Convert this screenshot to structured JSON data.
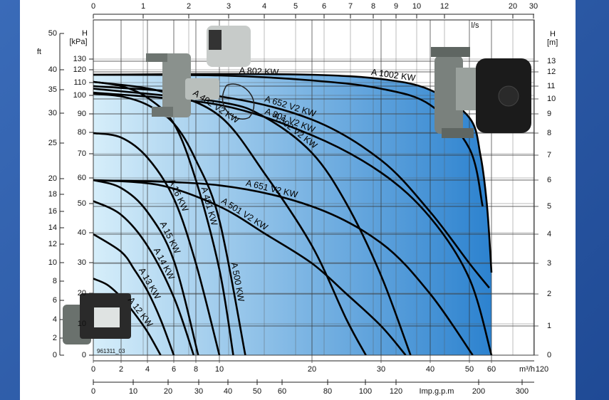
{
  "chart_data": {
    "type": "line",
    "code": "961311_03",
    "color": "#000000",
    "area_colors": [
      "#d6eefa",
      "#2c82cf"
    ],
    "grid": true,
    "x_label": "m³/h",
    "xlim": [
      0,
      120
    ],
    "xticks": [
      0,
      2,
      4,
      6,
      8,
      10,
      20,
      30,
      40,
      50,
      60,
      120
    ],
    "x2_label": "l/s",
    "x2ticks": [
      0,
      1,
      2,
      3,
      4,
      5,
      6,
      7,
      8,
      9,
      10,
      12,
      20,
      30
    ],
    "x3_label": "Imp.g.p.m",
    "x3ticks": [
      0,
      10,
      20,
      30,
      40,
      50,
      60,
      80,
      100,
      120,
      200,
      300
    ],
    "y_label": "H",
    "y_unit": "[m]",
    "ylim": [
      0,
      13
    ],
    "yticks": [
      0,
      1,
      2,
      3,
      4,
      5,
      6,
      7,
      8,
      9,
      10,
      11,
      12,
      13
    ],
    "y2_label": "H",
    "y2_unit": "[kPa]",
    "y2ticks": [
      0,
      10,
      20,
      30,
      40,
      50,
      60,
      70,
      80,
      90,
      100,
      110,
      120,
      130
    ],
    "y3_label": "ft",
    "y3ticks": [
      0,
      2,
      4,
      6,
      8,
      10,
      12,
      14,
      16,
      18,
      20,
      25,
      30,
      35,
      40,
      50
    ],
    "series": [
      {
        "name": "A 12 KW",
        "x": [
          0,
          1,
          2,
          3,
          4,
          5
        ],
        "values": [
          2.5,
          2.3,
          1.9,
          1.4,
          0.8,
          0
        ]
      },
      {
        "name": "A 13 KW",
        "x": [
          0,
          2,
          3,
          4,
          5,
          6
        ],
        "values": [
          4,
          3.4,
          2.8,
          2.1,
          1.2,
          0
        ]
      },
      {
        "name": "A 14 KW",
        "x": [
          0,
          2,
          4,
          6,
          7.8
        ],
        "values": [
          5.2,
          4.7,
          3.6,
          1.9,
          0
        ]
      },
      {
        "name": "A 15 KW",
        "x": [
          0,
          2,
          4,
          6,
          8.2
        ],
        "values": [
          6,
          5.7,
          4.8,
          3.1,
          0
        ]
      },
      {
        "name": "A 16 KW",
        "x": [
          0,
          2,
          4,
          6,
          8,
          10
        ],
        "values": [
          8,
          7.8,
          6.9,
          5.3,
          3,
          0
        ]
      },
      {
        "name": "A 401 KW",
        "x": [
          0,
          2,
          4,
          6,
          8,
          10,
          11.5
        ],
        "values": [
          11.3,
          11,
          10.1,
          8.5,
          6,
          2.8,
          0
        ]
      },
      {
        "name": "A 500 KW",
        "x": [
          0,
          2,
          4,
          6,
          8,
          10,
          12.8
        ],
        "values": [
          10.4,
          10.2,
          9.6,
          8.5,
          6.8,
          4.5,
          0
        ]
      },
      {
        "name": "A 402 V2 KW",
        "x": [
          0,
          5,
          10,
          15,
          20,
          25,
          27.8
        ],
        "values": [
          11.3,
          10.6,
          8.9,
          6.2,
          3.6,
          1.2,
          0
        ]
      },
      {
        "name": "A 501 V2 KW",
        "x": [
          0,
          5,
          10,
          15,
          20,
          25,
          30,
          35
        ],
        "values": [
          6,
          5.8,
          5,
          4,
          3,
          2,
          1,
          0
        ]
      },
      {
        "name": "A 502 V2 KW",
        "x": [
          0,
          10,
          15,
          20,
          25,
          30,
          36
        ],
        "values": [
          10.8,
          9.8,
          8.8,
          7.1,
          5.1,
          2.6,
          0
        ]
      },
      {
        "name": "A 651 V2 KW",
        "x": [
          0,
          10,
          20,
          30,
          40,
          51.5
        ],
        "values": [
          6,
          5.8,
          5,
          3.7,
          2,
          0
        ]
      },
      {
        "name": "A 801 V2 KW",
        "x": [
          0,
          10,
          20,
          30,
          40,
          50,
          60
        ],
        "values": [
          10.5,
          9.6,
          7.9,
          6.3,
          4.6,
          2.5,
          0
        ]
      },
      {
        "name": "A 652 V2 KW",
        "x": [
          0,
          10,
          20,
          30,
          40,
          50,
          59
        ],
        "values": [
          11,
          10.2,
          8.7,
          6.8,
          4.8,
          3,
          2.2
        ]
      },
      {
        "name": "A 802 KW",
        "x": [
          0,
          10,
          20,
          30,
          40,
          50,
          56
        ],
        "values": [
          11.8,
          11.75,
          11.4,
          10.8,
          9.6,
          7.3,
          5
        ]
      },
      {
        "name": "A 1002 KW",
        "x": [
          0,
          10,
          20,
          30,
          40,
          50,
          55,
          58,
          60
        ],
        "values": [
          11.8,
          11.85,
          11.8,
          11.5,
          10.7,
          8.8,
          7,
          5,
          2.7
        ]
      }
    ]
  }
}
